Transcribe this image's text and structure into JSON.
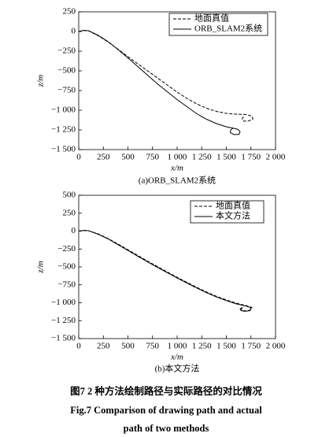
{
  "chart_data": [
    {
      "type": "line",
      "subtitle": "(a)ORB_SLAM2系统",
      "x_label": "x/m",
      "y_label": "z/m",
      "xlim": [
        0,
        2000
      ],
      "ylim": [
        -1500,
        250
      ],
      "xticks": [
        0,
        250,
        500,
        750,
        {
          "value": 1000,
          "label": "1 000"
        },
        {
          "value": 1250,
          "label": "1 250"
        },
        {
          "value": 1500,
          "label": "1 500"
        },
        {
          "value": 1750,
          "label": "1 750"
        },
        {
          "value": 2000,
          "label": "2 000"
        }
      ],
      "yticks": [
        250,
        0,
        {
          "value": -250,
          "label": "−250"
        },
        {
          "value": -500,
          "label": "−500"
        },
        {
          "value": -750,
          "label": "−750"
        },
        {
          "value": -1000,
          "label": "−1 000"
        },
        {
          "value": -1250,
          "label": "−1 250"
        },
        {
          "value": -1500,
          "label": "−1 500"
        }
      ],
      "legend": "upper right",
      "series": [
        {
          "name": "地面真值",
          "color": "#000000",
          "dash": true,
          "x": [
            0,
            50,
            100,
            200,
            300,
            400,
            500,
            600,
            700,
            800,
            900,
            1000,
            1100,
            1200,
            1300,
            1400,
            1500,
            1600,
            1700,
            1760,
            1770,
            1730,
            1680,
            1660,
            1680
          ],
          "values": [
            0,
            12,
            8,
            -55,
            -135,
            -225,
            -320,
            -410,
            -500,
            -590,
            -680,
            -770,
            -850,
            -920,
            -975,
            -1015,
            -1040,
            -1050,
            -1055,
            -1075,
            -1110,
            -1135,
            -1140,
            -1110,
            -1075
          ]
        },
        {
          "name": "ORB_SLAM2系统",
          "color": "#000000",
          "dash": false,
          "x": [
            0,
            50,
            100,
            200,
            300,
            400,
            500,
            600,
            700,
            800,
            900,
            1000,
            1100,
            1200,
            1300,
            1400,
            1500,
            1560,
            1610,
            1640,
            1630,
            1580,
            1540,
            1545,
            1570
          ],
          "values": [
            0,
            15,
            10,
            -50,
            -130,
            -230,
            -335,
            -445,
            -555,
            -665,
            -765,
            -865,
            -955,
            -1045,
            -1115,
            -1170,
            -1210,
            -1225,
            -1240,
            -1270,
            -1305,
            -1310,
            -1285,
            -1250,
            -1225
          ]
        }
      ]
    },
    {
      "type": "line",
      "subtitle": "(b)本文方法",
      "x_label": "x/m",
      "y_label": "z/m",
      "xlim": [
        0,
        2000
      ],
      "ylim": [
        -1500,
        500
      ],
      "xticks": [
        0,
        250,
        500,
        750,
        {
          "value": 1000,
          "label": "1 000"
        },
        {
          "value": 1250,
          "label": "1 250"
        },
        {
          "value": 1500,
          "label": "1 500"
        },
        {
          "value": 1750,
          "label": "1 750"
        },
        {
          "value": 2000,
          "label": "2 000"
        }
      ],
      "yticks": [
        500,
        250,
        0,
        {
          "value": -250,
          "label": "−250"
        },
        {
          "value": -500,
          "label": "−500"
        },
        {
          "value": -750,
          "label": "−750"
        },
        {
          "value": -1000,
          "label": "−1 000"
        },
        {
          "value": -1250,
          "label": "−1 250"
        },
        {
          "value": -1500,
          "label": "−1 500"
        }
      ],
      "legend": "upper right",
      "series": [
        {
          "name": "地面真值",
          "color": "#000000",
          "dash": true,
          "x": [
            0,
            50,
            100,
            200,
            300,
            400,
            500,
            600,
            700,
            800,
            900,
            1000,
            1100,
            1200,
            1300,
            1400,
            1500,
            1600,
            1700,
            1760,
            1750,
            1700,
            1660,
            1650,
            1680
          ],
          "values": [
            0,
            8,
            5,
            -40,
            -105,
            -180,
            -260,
            -340,
            -420,
            -495,
            -570,
            -645,
            -715,
            -785,
            -850,
            -910,
            -960,
            -1005,
            -1040,
            -1065,
            -1100,
            -1115,
            -1105,
            -1080,
            -1060
          ]
        },
        {
          "name": "本文方法",
          "color": "#000000",
          "dash": false,
          "x": [
            0,
            50,
            100,
            200,
            300,
            400,
            500,
            600,
            700,
            800,
            900,
            1000,
            1100,
            1200,
            1300,
            1400,
            1500,
            1600,
            1700,
            1750,
            1740,
            1690,
            1650,
            1640,
            1665
          ],
          "values": [
            0,
            10,
            6,
            -45,
            -110,
            -190,
            -270,
            -350,
            -430,
            -505,
            -580,
            -655,
            -725,
            -795,
            -860,
            -920,
            -970,
            -1015,
            -1045,
            -1070,
            -1110,
            -1120,
            -1110,
            -1085,
            -1065
          ]
        }
      ]
    }
  ],
  "figure_caption": {
    "zh": "图7   2 种方法绘制路径与实际路径的对比情况",
    "en": [
      "Fig.7    Comparison of drawing path and actual",
      "path of two methods"
    ]
  }
}
